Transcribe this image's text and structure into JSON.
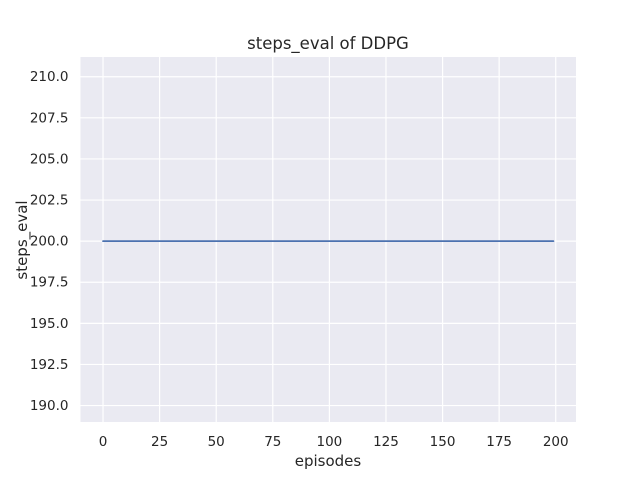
{
  "figure": {
    "background_color": "#ffffff"
  },
  "chart_data": {
    "type": "line",
    "title": "steps_eval of DDPG",
    "xlabel": "episodes",
    "ylabel": "steps_eval",
    "style": "seaborn-darkgrid",
    "grid": true,
    "legend": false,
    "axes_background_color": "#eaeaf2",
    "grid_color": "#ffffff",
    "text_color": "#262626",
    "xlim": [
      -9.95,
      208.95
    ],
    "ylim": [
      189.0,
      211.2
    ],
    "xticks": [
      0,
      25,
      50,
      75,
      100,
      125,
      150,
      175,
      200
    ],
    "xtick_labels": [
      "0",
      "25",
      "50",
      "75",
      "100",
      "125",
      "150",
      "175",
      "200"
    ],
    "yticks": [
      190.0,
      192.5,
      195.0,
      197.5,
      200.0,
      202.5,
      205.0,
      207.5,
      210.0
    ],
    "ytick_labels": [
      "190.0",
      "192.5",
      "195.0",
      "197.5",
      "200.0",
      "202.5",
      "205.0",
      "207.5",
      "210.0"
    ],
    "series": [
      {
        "name": "steps_eval",
        "color": "#4c72b0",
        "line_width": 1.8,
        "constant_value": 200.0,
        "x": [
          0,
          199
        ],
        "y": [
          200.0,
          200.0
        ]
      }
    ]
  }
}
